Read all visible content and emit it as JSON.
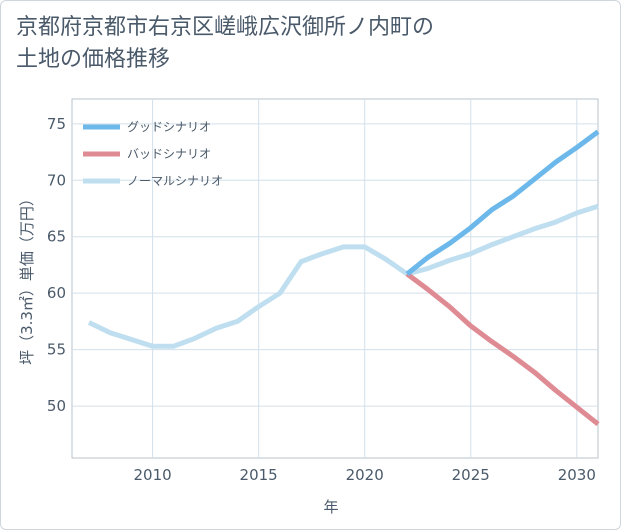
{
  "chart_data": {
    "type": "line",
    "title_lines": [
      "京都府京都市右京区嵯峨広沢御所ノ内町の",
      "土地の価格推移"
    ],
    "xlabel": "年",
    "ylabel": "坪（3.3㎡）単価（万円）",
    "xlim": [
      2006.2,
      2031
    ],
    "ylim": [
      45.4,
      77.2
    ],
    "x_ticks": [
      2010,
      2015,
      2020,
      2025,
      2030
    ],
    "y_ticks": [
      50,
      55,
      60,
      65,
      70,
      75
    ],
    "grid": true,
    "legend_position": "top-left",
    "series": [
      {
        "name": "グッドシナリオ",
        "color": "#6cb8ea",
        "x": [
          2022,
          2023,
          2024,
          2025,
          2026,
          2027,
          2028,
          2029,
          2030,
          2031
        ],
        "y": [
          61.7,
          63.2,
          64.4,
          65.8,
          67.4,
          68.6,
          70.1,
          71.6,
          72.9,
          74.3
        ]
      },
      {
        "name": "バッドシナリオ",
        "color": "#df8b93",
        "x": [
          2022,
          2023,
          2024,
          2025,
          2026,
          2027,
          2028,
          2029,
          2030,
          2031
        ],
        "y": [
          61.7,
          60.3,
          58.8,
          57.1,
          55.7,
          54.4,
          53.0,
          51.4,
          49.9,
          48.4
        ]
      },
      {
        "name": "ノーマルシナリオ",
        "color": "#bfdff0",
        "x": [
          2007,
          2008,
          2009,
          2010,
          2011,
          2012,
          2013,
          2014,
          2015,
          2016,
          2017,
          2018,
          2019,
          2020,
          2021,
          2022,
          2023,
          2024,
          2025,
          2026,
          2027,
          2028,
          2029,
          2030,
          2031
        ],
        "y": [
          57.4,
          56.5,
          55.9,
          55.3,
          55.3,
          56.0,
          56.9,
          57.5,
          58.8,
          60.0,
          62.8,
          63.5,
          64.1,
          64.1,
          63.0,
          61.7,
          62.2,
          62.9,
          63.5,
          64.3,
          65.0,
          65.7,
          66.3,
          67.1,
          67.7
        ]
      }
    ]
  }
}
